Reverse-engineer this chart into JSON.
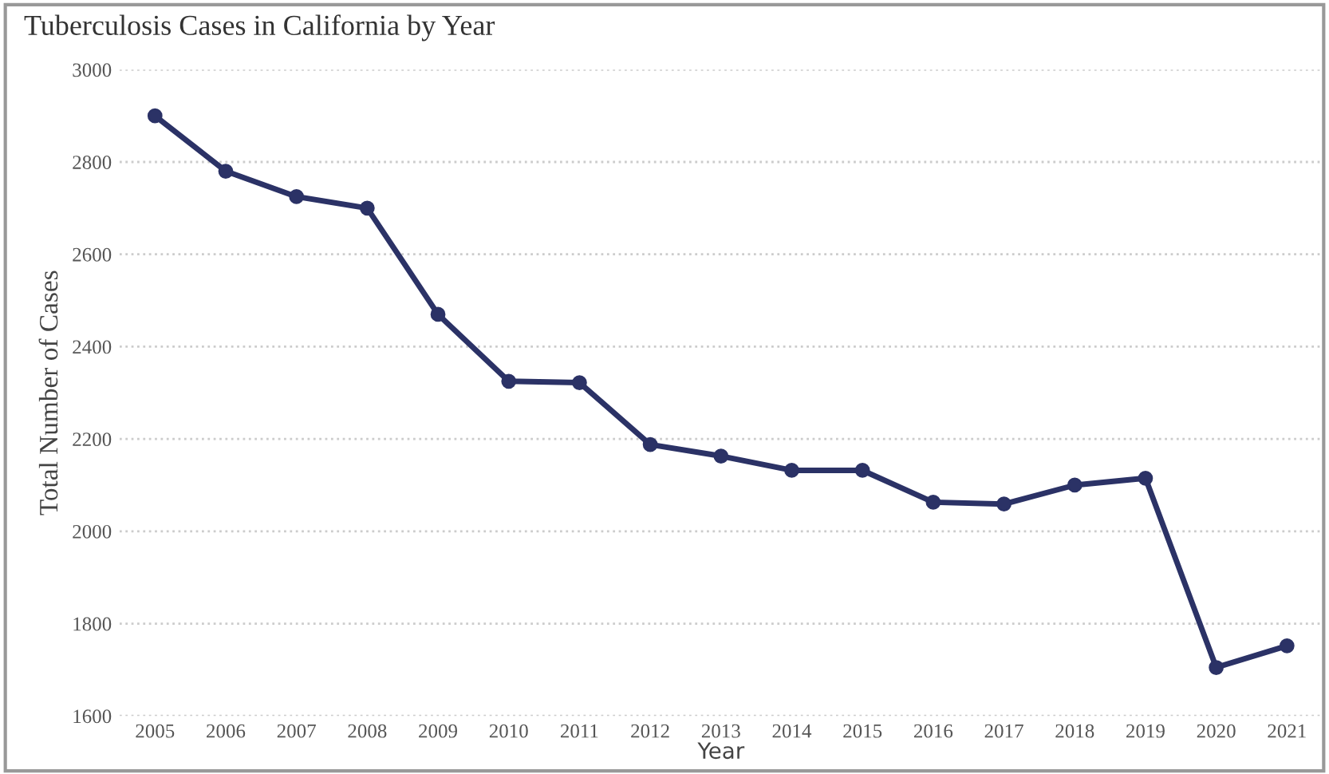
{
  "chart_data": {
    "type": "line",
    "title": "Tuberculosis Cases in California by Year",
    "xlabel": "Year",
    "ylabel": "Total Number of Cases",
    "categories": [
      "2005",
      "2006",
      "2007",
      "2008",
      "2009",
      "2010",
      "2011",
      "2012",
      "2013",
      "2014",
      "2015",
      "2016",
      "2017",
      "2018",
      "2019",
      "2020",
      "2021"
    ],
    "series": [
      {
        "color": "#2b3266",
        "values": [
          2900,
          2780,
          2725,
          2700,
          2470,
          2325,
          2322,
          2188,
          2163,
          2132,
          2132,
          2063,
          2059,
          2100,
          2115,
          1705,
          1752
        ]
      }
    ],
    "ylim": [
      1600,
      3000
    ],
    "yticks": [
      1600,
      1800,
      2000,
      2200,
      2400,
      2600,
      2800,
      3000
    ],
    "grid": "y",
    "marker": "circle",
    "line_style": "solid"
  }
}
